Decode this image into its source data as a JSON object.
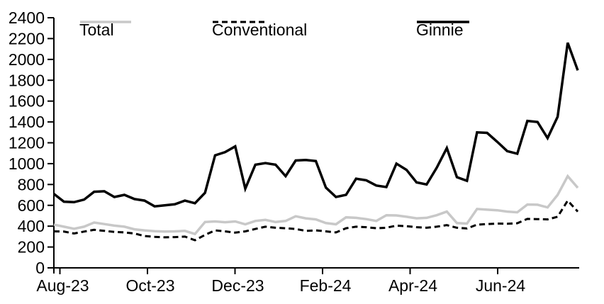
{
  "chart_data": {
    "type": "line",
    "title": "",
    "xlabel": "",
    "ylabel": "",
    "x_unit": "weekly observations, Aug-2023 through Aug-2024",
    "x_tick_labels": [
      "Aug-23",
      "Oct-23",
      "Dec-23",
      "Feb-24",
      "Apr-24",
      "Jun-24"
    ],
    "y_tick_values": [
      0,
      200,
      400,
      600,
      800,
      1000,
      1200,
      1400,
      1600,
      1800,
      2000,
      2200,
      2400
    ],
    "ylim": [
      0,
      2400
    ],
    "grid": "off",
    "legend_position": "top",
    "series": [
      {
        "name": "Total",
        "color": "#c8c8c8",
        "style": "solid",
        "values": [
          415,
          395,
          375,
          395,
          435,
          420,
          405,
          395,
          370,
          360,
          352,
          348,
          350,
          355,
          325,
          440,
          445,
          438,
          445,
          418,
          450,
          460,
          440,
          450,
          495,
          475,
          465,
          430,
          418,
          485,
          480,
          468,
          450,
          505,
          503,
          490,
          475,
          480,
          505,
          540,
          430,
          425,
          565,
          558,
          553,
          540,
          533,
          608,
          606,
          580,
          700,
          880,
          768
        ]
      },
      {
        "name": "Conventional",
        "color": "#000000",
        "style": "dashed",
        "values": [
          350,
          348,
          330,
          348,
          365,
          355,
          345,
          340,
          330,
          305,
          298,
          293,
          295,
          300,
          265,
          316,
          360,
          350,
          338,
          350,
          373,
          395,
          385,
          380,
          373,
          355,
          360,
          350,
          340,
          380,
          395,
          390,
          380,
          385,
          405,
          400,
          390,
          385,
          395,
          410,
          385,
          378,
          415,
          420,
          425,
          423,
          428,
          470,
          468,
          465,
          490,
          645,
          540
        ]
      },
      {
        "name": "Ginnie",
        "color": "#000000",
        "style": "solid",
        "values": [
          710,
          635,
          630,
          655,
          730,
          735,
          680,
          700,
          660,
          645,
          590,
          600,
          610,
          645,
          620,
          720,
          1080,
          1110,
          1165,
          760,
          990,
          1005,
          990,
          880,
          1030,
          1035,
          1025,
          770,
          680,
          700,
          855,
          840,
          790,
          775,
          1000,
          940,
          820,
          800,
          960,
          1150,
          870,
          835,
          1300,
          1295,
          1210,
          1120,
          1095,
          1410,
          1400,
          1245,
          1450,
          2160,
          1895
        ]
      }
    ]
  }
}
